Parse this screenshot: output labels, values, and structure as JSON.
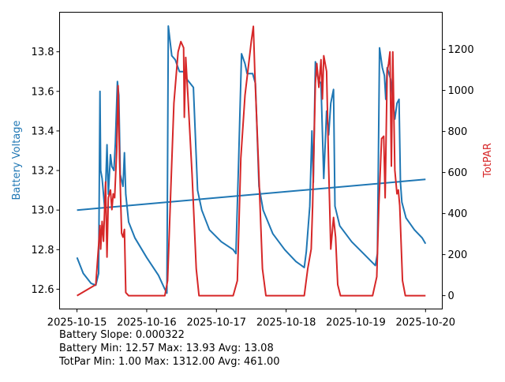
{
  "chart_data": {
    "type": "line",
    "title": "",
    "xlabel": "",
    "x_unit": "days since 2025-10-15",
    "x_ticks": [
      "2025-10-15",
      "2025-10-16",
      "2025-10-17",
      "2025-10-18",
      "2025-10-19",
      "2025-10-20"
    ],
    "xlim": [
      -0.25,
      5.24
    ],
    "left_axis": {
      "label": "Battery Voltage",
      "color": "#1f77b4",
      "ylim": [
        12.5,
        14.0
      ],
      "ticks": [
        "12.6",
        "12.8",
        "13.0",
        "13.2",
        "13.4",
        "13.6",
        "13.8"
      ]
    },
    "right_axis": {
      "label": "TotPAR",
      "color": "#d62728",
      "ylim": [
        -65,
        1381
      ],
      "ticks": [
        "0",
        "200",
        "400",
        "600",
        "800",
        "1000",
        "1200"
      ]
    },
    "series": [
      {
        "name": "Battery Voltage",
        "axis": "left",
        "color": "#1f77b4",
        "x": [
          0,
          0.09,
          0.2,
          0.27,
          0.31,
          0.33,
          0.34,
          0.36,
          0.4,
          0.43,
          0.45,
          0.48,
          0.5,
          0.53,
          0.55,
          0.58,
          0.6,
          0.62,
          0.66,
          0.68,
          0.7,
          0.74,
          0.83,
          1.0,
          1.17,
          1.26,
          1.29,
          1.31,
          1.36,
          1.41,
          1.47,
          1.53,
          1.58,
          1.67,
          1.73,
          1.79,
          1.9,
          2.07,
          2.24,
          2.28,
          2.32,
          2.36,
          2.41,
          2.44,
          2.52,
          2.56,
          2.61,
          2.67,
          2.81,
          2.98,
          3.14,
          3.26,
          3.29,
          3.34,
          3.37,
          3.39,
          3.42,
          3.46,
          3.5,
          3.54,
          3.58,
          3.61,
          3.64,
          3.68,
          3.7,
          3.77,
          3.94,
          4.11,
          4.28,
          4.31,
          4.34,
          4.38,
          4.41,
          4.43,
          4.45,
          4.5,
          4.56,
          4.59,
          4.62,
          4.64,
          4.66,
          4.72,
          4.84,
          4.95,
          5.0
        ],
        "y": [
          12.76,
          12.68,
          12.63,
          12.62,
          12.68,
          13.6,
          13.2,
          13.16,
          13.0,
          13.33,
          13.08,
          13.28,
          13.22,
          13.2,
          13.34,
          13.65,
          13.58,
          13.18,
          13.12,
          13.29,
          13.08,
          12.94,
          12.86,
          12.76,
          12.67,
          12.6,
          12.58,
          13.93,
          13.78,
          13.76,
          13.7,
          13.7,
          13.66,
          13.62,
          13.1,
          13.0,
          12.9,
          12.84,
          12.8,
          12.78,
          13.26,
          13.79,
          13.74,
          13.69,
          13.69,
          13.64,
          13.12,
          13.0,
          12.88,
          12.8,
          12.74,
          12.71,
          12.79,
          13.02,
          13.4,
          13.14,
          13.75,
          13.66,
          13.64,
          13.16,
          13.5,
          13.38,
          13.54,
          13.61,
          13.02,
          12.92,
          12.84,
          12.78,
          12.72,
          12.78,
          13.82,
          13.72,
          13.68,
          13.56,
          13.72,
          13.66,
          13.46,
          13.54,
          13.56,
          13.14,
          13.04,
          12.96,
          12.9,
          12.86,
          12.83
        ]
      },
      {
        "name": "Battery Trend",
        "axis": "left",
        "color": "#1f77b4",
        "x": [
          0,
          5
        ],
        "y": [
          13.0,
          13.155
        ]
      },
      {
        "name": "TotPAR",
        "axis": "right",
        "color": "#d62728",
        "x": [
          0,
          0.27,
          0.31,
          0.33,
          0.34,
          0.36,
          0.38,
          0.41,
          0.43,
          0.45,
          0.48,
          0.5,
          0.52,
          0.54,
          0.57,
          0.59,
          0.61,
          0.64,
          0.66,
          0.68,
          0.7,
          0.74,
          1.26,
          1.3,
          1.35,
          1.39,
          1.45,
          1.49,
          1.53,
          1.54,
          1.56,
          1.59,
          1.65,
          1.71,
          1.75,
          2.24,
          2.3,
          2.35,
          2.41,
          2.47,
          2.5,
          2.53,
          2.55,
          2.6,
          2.66,
          2.71,
          3.26,
          3.31,
          3.36,
          3.38,
          3.42,
          3.44,
          3.47,
          3.5,
          3.52,
          3.54,
          3.58,
          3.61,
          3.64,
          3.68,
          3.71,
          3.74,
          3.78,
          4.24,
          4.3,
          4.33,
          4.37,
          4.4,
          4.42,
          4.45,
          4.47,
          4.49,
          4.51,
          4.53,
          4.56,
          4.59,
          4.61,
          4.63,
          4.67,
          4.71,
          5.0
        ],
        "y": [
          0,
          54,
          246,
          342,
          227,
          362,
          265,
          554,
          188,
          477,
          515,
          419,
          496,
          477,
          708,
          1023,
          669,
          304,
          285,
          323,
          15,
          0,
          0,
          73,
          554,
          938,
          1188,
          1238,
          1208,
          869,
          1161,
          977,
          592,
          131,
          0,
          0,
          73,
          669,
          977,
          1150,
          1238,
          1312,
          1092,
          669,
          131,
          0,
          0,
          131,
          227,
          438,
          1035,
          1131,
          1015,
          1150,
          958,
          1169,
          1092,
          631,
          227,
          381,
          285,
          54,
          0,
          0,
          92,
          438,
          765,
          777,
          477,
          1092,
          1131,
          1188,
          631,
          1188,
          611,
          496,
          515,
          438,
          73,
          0,
          0
        ]
      }
    ],
    "annotations": [
      "Battery Slope: 0.000322",
      "Battery Min: 12.57 Max: 13.93 Avg: 13.08",
      "TotPar Min: 1.00 Max: 1312.00 Avg: 461.00"
    ],
    "grid": false
  }
}
